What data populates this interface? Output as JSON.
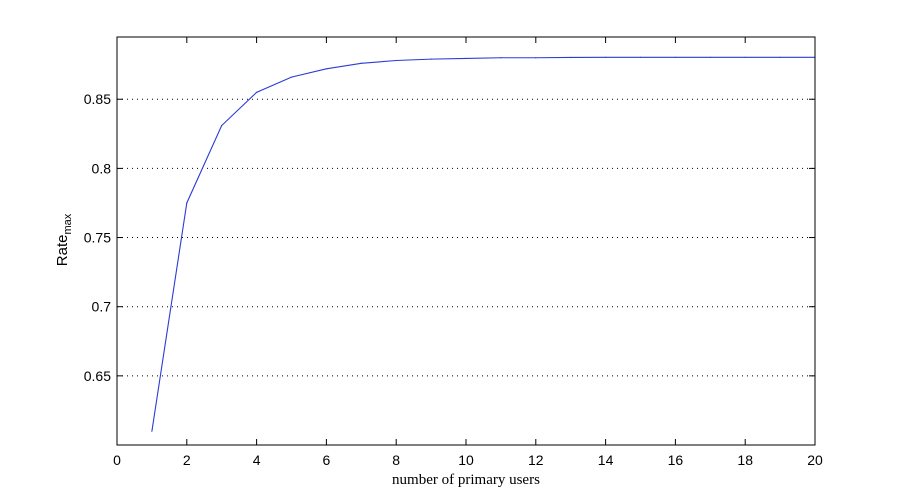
{
  "chart_data": {
    "type": "line",
    "xlabel": "number of primary users",
    "ylabel": {
      "main": "Rate",
      "subscript": "max"
    },
    "xlim": [
      0,
      20
    ],
    "ylim": [
      0.6,
      0.895
    ],
    "xticks": [
      0,
      2,
      4,
      6,
      8,
      10,
      12,
      14,
      16,
      18,
      20
    ],
    "xtick_labels": [
      "0",
      "2",
      "4",
      "6",
      "8",
      "10",
      "12",
      "14",
      "16",
      "18",
      "20"
    ],
    "yticks": [
      0.65,
      0.7,
      0.75,
      0.8,
      0.85
    ],
    "ytick_labels": [
      "0.65",
      "0.7",
      "0.75",
      "0.8",
      "0.85"
    ],
    "grid": "horizontal dotted",
    "line_color": "#2b3bd6",
    "series": [
      {
        "x": [
          1,
          2,
          3,
          4,
          5,
          6,
          7,
          8,
          9,
          10,
          11,
          12,
          13,
          14,
          15,
          16,
          17,
          18,
          19,
          20
        ],
        "values": [
          0.61,
          0.775,
          0.831,
          0.855,
          0.866,
          0.872,
          0.876,
          0.878,
          0.879,
          0.8795,
          0.88,
          0.88,
          0.8802,
          0.8803,
          0.8803,
          0.8803,
          0.8803,
          0.8803,
          0.8803,
          0.8803
        ]
      }
    ]
  }
}
